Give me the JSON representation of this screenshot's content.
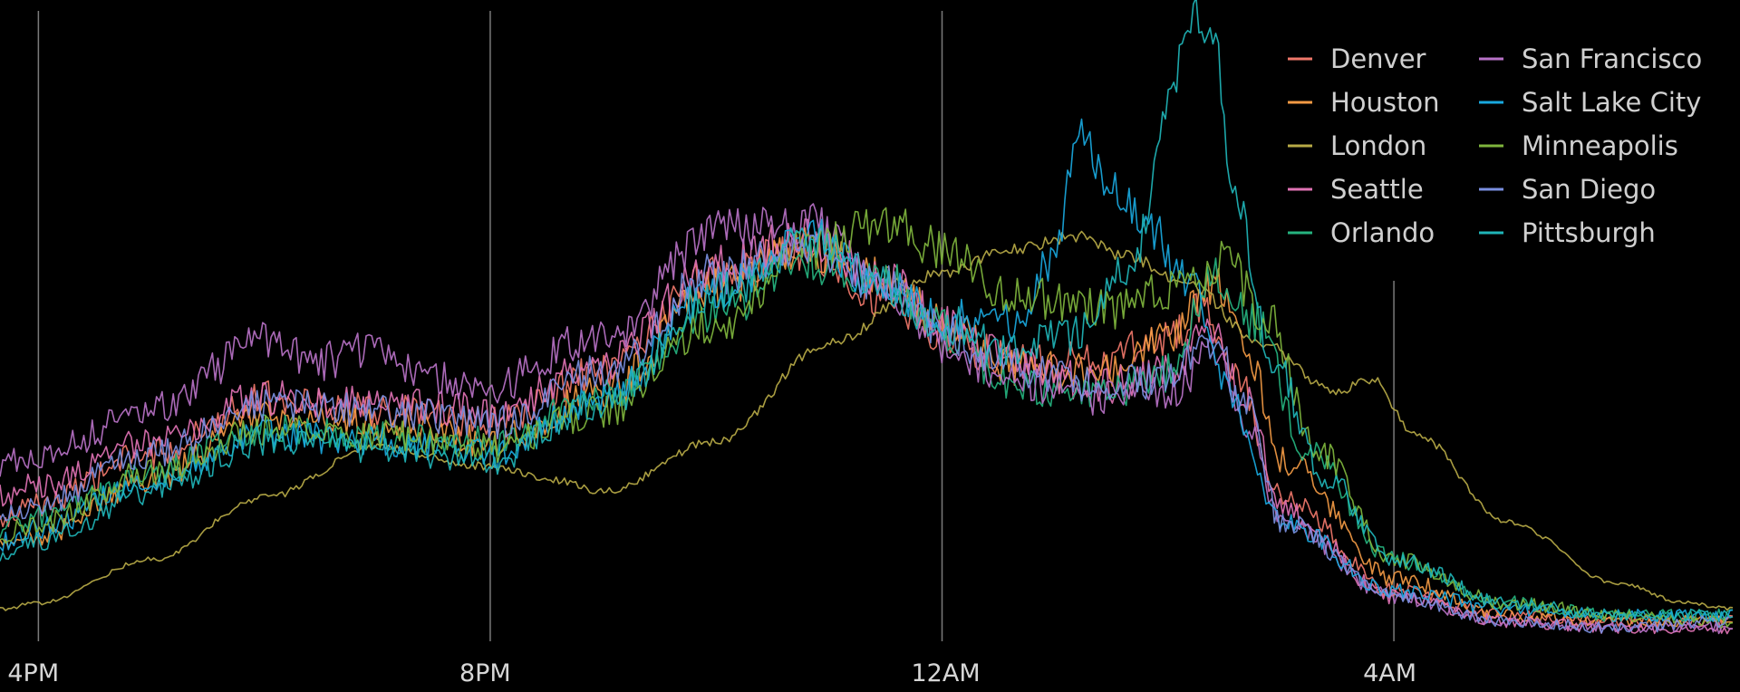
{
  "chart_data": {
    "type": "line",
    "title": "",
    "xlabel": "",
    "ylabel": "",
    "x_ticks": [
      {
        "label": "4PM",
        "hour": 16
      },
      {
        "label": "8PM",
        "hour": 20
      },
      {
        "label": "12AM",
        "hour": 24
      },
      {
        "label": "4AM",
        "hour": 28
      }
    ],
    "x_range_hours": [
      15.66,
      31.0
    ],
    "y_range": [
      0,
      1
    ],
    "y_axis_shown": false,
    "grid": "vertical lines at x ticks",
    "legend_placement": "top-right",
    "background": "#000000",
    "series": [
      {
        "name": "Denver",
        "color": "#f0776a",
        "points": [
          [
            15.66,
            0.18
          ],
          [
            16,
            0.21
          ],
          [
            17,
            0.29
          ],
          [
            18,
            0.38
          ],
          [
            19,
            0.36
          ],
          [
            20,
            0.34
          ],
          [
            21,
            0.42
          ],
          [
            22,
            0.58
          ],
          [
            22.8,
            0.62
          ],
          [
            23.5,
            0.54
          ],
          [
            24,
            0.48
          ],
          [
            24.6,
            0.44
          ],
          [
            25.4,
            0.44
          ],
          [
            26,
            0.48
          ],
          [
            26.3,
            0.52
          ],
          [
            26.6,
            0.42
          ],
          [
            27,
            0.22
          ],
          [
            28,
            0.07
          ],
          [
            29,
            0.03
          ],
          [
            30,
            0.02
          ],
          [
            31,
            0.02
          ]
        ]
      },
      {
        "name": "Houston",
        "color": "#f39a44",
        "points": [
          [
            15.66,
            0.14
          ],
          [
            16,
            0.16
          ],
          [
            17,
            0.25
          ],
          [
            18,
            0.35
          ],
          [
            19,
            0.34
          ],
          [
            20,
            0.31
          ],
          [
            21,
            0.39
          ],
          [
            22,
            0.56
          ],
          [
            22.8,
            0.62
          ],
          [
            23.5,
            0.57
          ],
          [
            24,
            0.5
          ],
          [
            24.6,
            0.43
          ],
          [
            25.4,
            0.42
          ],
          [
            26,
            0.47
          ],
          [
            26.4,
            0.56
          ],
          [
            26.7,
            0.46
          ],
          [
            27,
            0.28
          ],
          [
            28,
            0.09
          ],
          [
            29,
            0.03
          ],
          [
            30,
            0.02
          ],
          [
            31,
            0.02
          ]
        ]
      },
      {
        "name": "London",
        "color": "#b7aa46",
        "points": [
          [
            15.66,
            0.04
          ],
          [
            16,
            0.05
          ],
          [
            17,
            0.12
          ],
          [
            18,
            0.22
          ],
          [
            19,
            0.3
          ],
          [
            20,
            0.27
          ],
          [
            20.5,
            0.25
          ],
          [
            21,
            0.23
          ],
          [
            22,
            0.31
          ],
          [
            23,
            0.47
          ],
          [
            24,
            0.58
          ],
          [
            24.6,
            0.62
          ],
          [
            25.2,
            0.64
          ],
          [
            25.6,
            0.61
          ],
          [
            26.2,
            0.56
          ],
          [
            26.8,
            0.47
          ],
          [
            27.5,
            0.39
          ],
          [
            27.8,
            0.41
          ],
          [
            28.2,
            0.32
          ],
          [
            29,
            0.18
          ],
          [
            30,
            0.08
          ],
          [
            30.6,
            0.05
          ],
          [
            31,
            0.04
          ]
        ]
      },
      {
        "name": "Seattle",
        "color": "#df72b4",
        "points": [
          [
            15.66,
            0.22
          ],
          [
            16,
            0.24
          ],
          [
            17,
            0.31
          ],
          [
            18,
            0.38
          ],
          [
            19,
            0.37
          ],
          [
            20,
            0.36
          ],
          [
            21,
            0.44
          ],
          [
            22,
            0.59
          ],
          [
            22.8,
            0.64
          ],
          [
            23.5,
            0.57
          ],
          [
            24,
            0.5
          ],
          [
            24.6,
            0.44
          ],
          [
            25.4,
            0.4
          ],
          [
            26,
            0.42
          ],
          [
            26.4,
            0.49
          ],
          [
            26.7,
            0.38
          ],
          [
            27,
            0.2
          ],
          [
            28,
            0.06
          ],
          [
            29,
            0.02
          ],
          [
            30,
            0.01
          ],
          [
            31,
            0.01
          ]
        ]
      },
      {
        "name": "Orlando",
        "color": "#25b37f",
        "points": [
          [
            15.66,
            0.17
          ],
          [
            16,
            0.19
          ],
          [
            17,
            0.26
          ],
          [
            18,
            0.33
          ],
          [
            19,
            0.32
          ],
          [
            20,
            0.31
          ],
          [
            21,
            0.38
          ],
          [
            22,
            0.52
          ],
          [
            22.8,
            0.6
          ],
          [
            23.5,
            0.57
          ],
          [
            24,
            0.49
          ],
          [
            24.6,
            0.4
          ],
          [
            25.4,
            0.38
          ],
          [
            26,
            0.42
          ],
          [
            26.4,
            0.58
          ],
          [
            26.8,
            0.5
          ],
          [
            27.2,
            0.3
          ],
          [
            28,
            0.12
          ],
          [
            29,
            0.05
          ],
          [
            30,
            0.03
          ],
          [
            31,
            0.03
          ]
        ]
      },
      {
        "name": "San Francisco",
        "color": "#b872c7",
        "points": [
          [
            15.66,
            0.27
          ],
          [
            16,
            0.29
          ],
          [
            17,
            0.36
          ],
          [
            18,
            0.47
          ],
          [
            18.5,
            0.44
          ],
          [
            19,
            0.46
          ],
          [
            19.5,
            0.41
          ],
          [
            20,
            0.4
          ],
          [
            21,
            0.48
          ],
          [
            22,
            0.65
          ],
          [
            22.8,
            0.66
          ],
          [
            23.5,
            0.56
          ],
          [
            24,
            0.47
          ],
          [
            24.6,
            0.41
          ],
          [
            25.4,
            0.38
          ],
          [
            26,
            0.39
          ],
          [
            26.4,
            0.45
          ],
          [
            26.7,
            0.34
          ],
          [
            27,
            0.18
          ],
          [
            28,
            0.06
          ],
          [
            29,
            0.02
          ],
          [
            30,
            0.01
          ],
          [
            31,
            0.01
          ]
        ]
      },
      {
        "name": "Salt Lake City",
        "color": "#19a8de",
        "points": [
          [
            15.66,
            0.15
          ],
          [
            16,
            0.17
          ],
          [
            17,
            0.25
          ],
          [
            18,
            0.32
          ],
          [
            19,
            0.31
          ],
          [
            20,
            0.29
          ],
          [
            21,
            0.38
          ],
          [
            22,
            0.55
          ],
          [
            22.8,
            0.64
          ],
          [
            23.5,
            0.56
          ],
          [
            24,
            0.51
          ],
          [
            24.6,
            0.5
          ],
          [
            25,
            0.6
          ],
          [
            25.2,
            0.82
          ],
          [
            25.5,
            0.72
          ],
          [
            25.8,
            0.66
          ],
          [
            26.2,
            0.56
          ],
          [
            26.5,
            0.4
          ],
          [
            27,
            0.18
          ],
          [
            28,
            0.07
          ],
          [
            29,
            0.04
          ],
          [
            30,
            0.03
          ],
          [
            31,
            0.03
          ]
        ]
      },
      {
        "name": "Minneapolis",
        "color": "#7fb53d",
        "points": [
          [
            15.66,
            0.16
          ],
          [
            16,
            0.18
          ],
          [
            17,
            0.26
          ],
          [
            18,
            0.33
          ],
          [
            19,
            0.32
          ],
          [
            20,
            0.3
          ],
          [
            21,
            0.36
          ],
          [
            22,
            0.5
          ],
          [
            22.8,
            0.62
          ],
          [
            23.5,
            0.66
          ],
          [
            24,
            0.62
          ],
          [
            24.6,
            0.55
          ],
          [
            25.4,
            0.52
          ],
          [
            26,
            0.55
          ],
          [
            26.5,
            0.6
          ],
          [
            26.9,
            0.5
          ],
          [
            27.3,
            0.3
          ],
          [
            28,
            0.12
          ],
          [
            29,
            0.05
          ],
          [
            30,
            0.03
          ],
          [
            31,
            0.02
          ]
        ]
      },
      {
        "name": "San Diego",
        "color": "#7a8fe0",
        "points": [
          [
            15.66,
            0.19
          ],
          [
            16,
            0.21
          ],
          [
            17,
            0.29
          ],
          [
            18,
            0.37
          ],
          [
            19,
            0.36
          ],
          [
            20,
            0.34
          ],
          [
            21,
            0.42
          ],
          [
            22,
            0.58
          ],
          [
            22.8,
            0.63
          ],
          [
            23.5,
            0.56
          ],
          [
            24,
            0.49
          ],
          [
            24.6,
            0.43
          ],
          [
            25.4,
            0.4
          ],
          [
            26,
            0.41
          ],
          [
            26.4,
            0.47
          ],
          [
            26.7,
            0.36
          ],
          [
            27,
            0.18
          ],
          [
            28,
            0.06
          ],
          [
            29,
            0.02
          ],
          [
            30,
            0.01
          ],
          [
            31,
            0.02
          ]
        ]
      },
      {
        "name": "Pittsburgh",
        "color": "#1fb5b8",
        "points": [
          [
            15.66,
            0.12
          ],
          [
            16,
            0.15
          ],
          [
            17,
            0.23
          ],
          [
            18,
            0.31
          ],
          [
            19,
            0.3
          ],
          [
            20,
            0.28
          ],
          [
            21,
            0.37
          ],
          [
            22,
            0.55
          ],
          [
            22.8,
            0.63
          ],
          [
            23.5,
            0.56
          ],
          [
            24,
            0.5
          ],
          [
            24.6,
            0.46
          ],
          [
            25.2,
            0.48
          ],
          [
            25.7,
            0.6
          ],
          [
            26,
            0.85
          ],
          [
            26.2,
            1.0
          ],
          [
            26.4,
            0.95
          ],
          [
            26.6,
            0.7
          ],
          [
            26.9,
            0.45
          ],
          [
            27.4,
            0.25
          ],
          [
            28,
            0.12
          ],
          [
            29,
            0.05
          ],
          [
            30,
            0.03
          ],
          [
            31,
            0.03
          ]
        ]
      }
    ]
  }
}
